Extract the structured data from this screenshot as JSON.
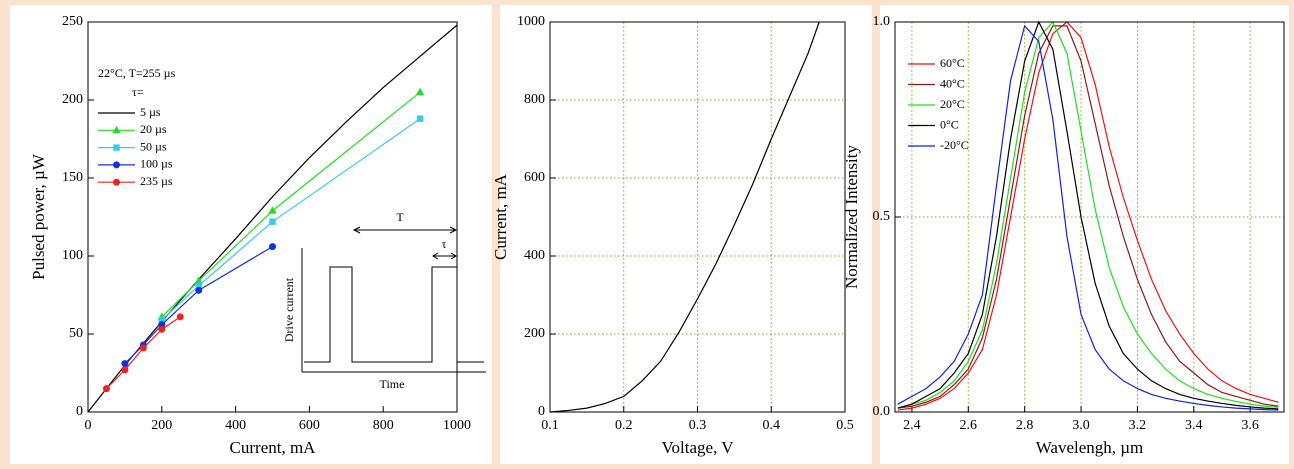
{
  "chart_data": [
    {
      "type": "line",
      "xlabel": "Current, mA",
      "ylabel": "Pulsed power, µW",
      "xlim": [
        0,
        1000
      ],
      "xticks": [
        0,
        200,
        400,
        600,
        800,
        1000
      ],
      "ylim": [
        0,
        250
      ],
      "yticks": [
        0,
        50,
        100,
        150,
        200,
        250
      ],
      "grid": false,
      "legend": "upper left",
      "annotations": {
        "condition": "22°C, T=255 µs",
        "tau_label": "τ=",
        "inset_period": "T",
        "inset_width": "τ",
        "inset_ylabel": "Drive current",
        "inset_xlabel": "Time"
      },
      "series": [
        {
          "name": "5 µs",
          "color": "#000000",
          "x": [
            0,
            50,
            100,
            200,
            300,
            400,
            500,
            600,
            700,
            800,
            900,
            1000
          ],
          "values": [
            0,
            15,
            30,
            58,
            85,
            111,
            138,
            163,
            186,
            208,
            228,
            248
          ]
        },
        {
          "name": "20 µs",
          "color": "#22dd22",
          "marker": "triangle",
          "x": [
            200,
            300,
            500,
            900
          ],
          "values": [
            61,
            84,
            129,
            205
          ]
        },
        {
          "name": "50 µs",
          "color": "#33ccee",
          "marker": "square",
          "x": [
            200,
            300,
            500,
            900
          ],
          "values": [
            59,
            81,
            122,
            188
          ]
        },
        {
          "name": "100 µs",
          "color": "#1133dd",
          "marker": "circle",
          "x": [
            100,
            150,
            200,
            300,
            500
          ],
          "values": [
            31,
            43,
            56,
            78,
            106
          ]
        },
        {
          "name": "235 µs",
          "color": "#ee2222",
          "marker": "circle",
          "x": [
            50,
            100,
            150,
            200,
            250
          ],
          "values": [
            15,
            27,
            41,
            53,
            61
          ]
        }
      ]
    },
    {
      "type": "line",
      "xlabel": "Voltage, V",
      "ylabel": "Current, mA",
      "xlim": [
        0.1,
        0.5
      ],
      "xticks": [
        0.1,
        0.2,
        0.3,
        0.4,
        0.5
      ],
      "ylim": [
        0,
        1000
      ],
      "yticks": [
        0,
        200,
        400,
        600,
        800,
        1000
      ],
      "grid": true,
      "series": [
        {
          "color": "#000000",
          "x": [
            0.1,
            0.125,
            0.15,
            0.175,
            0.2,
            0.225,
            0.25,
            0.275,
            0.3,
            0.325,
            0.35,
            0.375,
            0.4,
            0.425,
            0.45,
            0.465
          ],
          "values": [
            0,
            4,
            10,
            22,
            40,
            80,
            130,
            205,
            290,
            380,
            480,
            585,
            700,
            810,
            920,
            1000
          ]
        }
      ]
    },
    {
      "type": "line",
      "xlabel": "Wavelengh, µm",
      "ylabel": "Normalized Intensity",
      "xlim": [
        2.34,
        3.72
      ],
      "xticks": [
        2.4,
        2.6,
        2.8,
        {
          "value": 3,
          "label": "3.0"
        },
        3.2,
        3.4,
        3.6
      ],
      "ylim": [
        0,
        1
      ],
      "yticks": [
        {
          "value": 0,
          "label": "0.0"
        },
        0.5,
        {
          "value": 1,
          "label": "1.0"
        }
      ],
      "grid": true,
      "legend": "upper left",
      "x": [
        2.35,
        2.4,
        2.45,
        2.5,
        2.55,
        2.6,
        2.65,
        2.7,
        2.75,
        2.8,
        2.85,
        2.9,
        2.95,
        3.0,
        3.05,
        3.1,
        3.15,
        3.2,
        3.25,
        3.3,
        3.35,
        3.4,
        3.45,
        3.5,
        3.55,
        3.6,
        3.65,
        3.7
      ],
      "series": [
        {
          "name": "60°C",
          "color": "#ee1111",
          "values": [
            0.005,
            0.01,
            0.02,
            0.035,
            0.06,
            0.1,
            0.16,
            0.3,
            0.5,
            0.7,
            0.87,
            0.97,
            1.0,
            0.96,
            0.84,
            0.68,
            0.55,
            0.44,
            0.34,
            0.26,
            0.2,
            0.15,
            0.11,
            0.08,
            0.06,
            0.045,
            0.035,
            0.025
          ]
        },
        {
          "name": "40°C",
          "color": "#8b1a1a",
          "values": [
            0.01,
            0.015,
            0.025,
            0.04,
            0.07,
            0.11,
            0.19,
            0.34,
            0.55,
            0.76,
            0.92,
            0.99,
            0.99,
            0.9,
            0.74,
            0.58,
            0.45,
            0.34,
            0.25,
            0.18,
            0.13,
            0.1,
            0.07,
            0.05,
            0.04,
            0.03,
            0.02,
            0.015
          ]
        },
        {
          "name": "20°C",
          "color": "#22dd22",
          "values": [
            0.01,
            0.02,
            0.03,
            0.05,
            0.08,
            0.13,
            0.21,
            0.38,
            0.6,
            0.82,
            0.96,
            1.0,
            0.92,
            0.72,
            0.52,
            0.37,
            0.27,
            0.2,
            0.15,
            0.11,
            0.08,
            0.06,
            0.045,
            0.035,
            0.027,
            0.02,
            0.015,
            0.012
          ]
        },
        {
          "name": "0°C",
          "color": "#000000",
          "values": [
            0.01,
            0.02,
            0.04,
            0.06,
            0.1,
            0.15,
            0.25,
            0.45,
            0.7,
            0.9,
            1.0,
            0.93,
            0.72,
            0.5,
            0.33,
            0.22,
            0.15,
            0.11,
            0.08,
            0.06,
            0.045,
            0.035,
            0.028,
            0.022,
            0.017,
            0.013,
            0.01,
            0.008
          ]
        },
        {
          "name": "-20°C",
          "color": "#1122dd",
          "values": [
            0.02,
            0.04,
            0.06,
            0.09,
            0.13,
            0.2,
            0.3,
            0.58,
            0.85,
            0.99,
            0.95,
            0.75,
            0.45,
            0.25,
            0.16,
            0.11,
            0.08,
            0.06,
            0.045,
            0.035,
            0.028,
            0.022,
            0.017,
            0.013,
            0.01,
            0.008,
            0.006,
            0.005
          ]
        }
      ]
    }
  ]
}
